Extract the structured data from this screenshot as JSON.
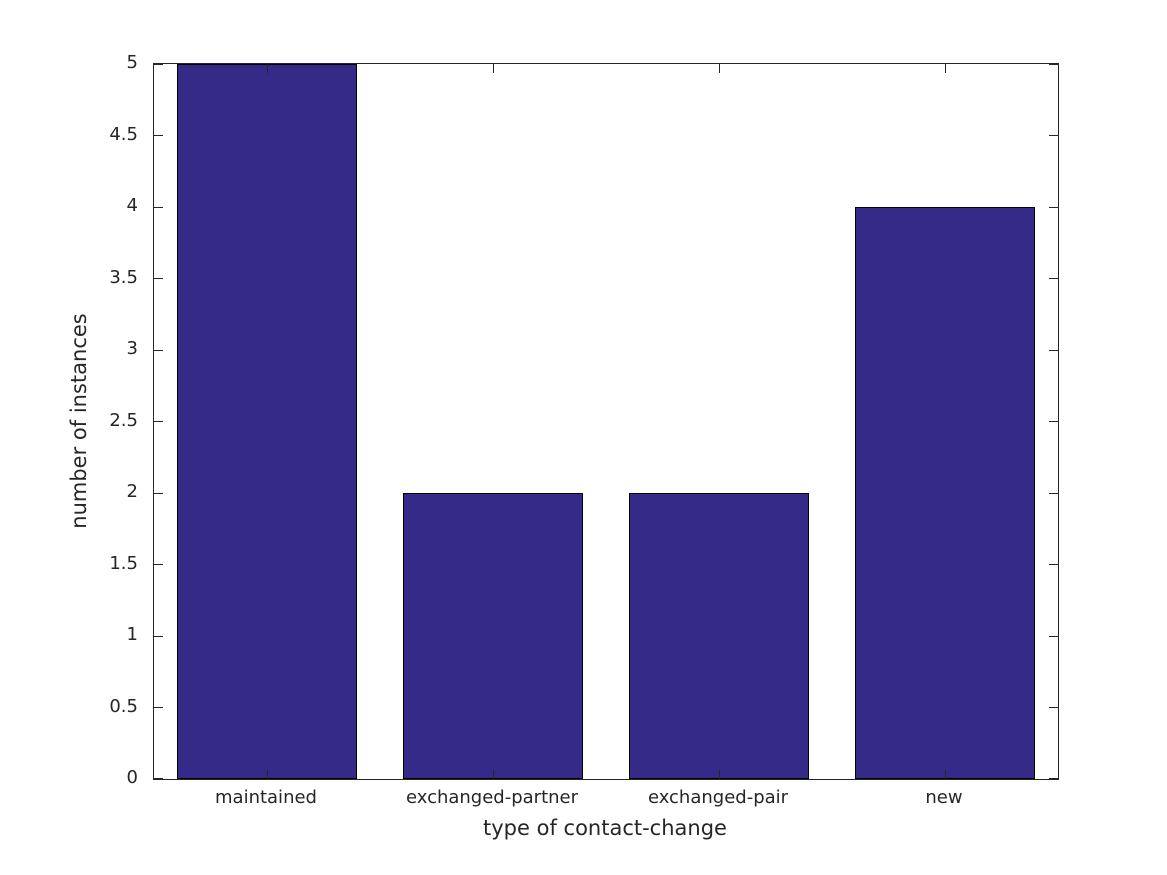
{
  "figure": {
    "background": "#ffffff"
  },
  "chart_data": {
    "type": "bar",
    "title": "",
    "xlabel": "type of contact-change",
    "ylabel": "number of instances",
    "categories": [
      "maintained",
      "exchanged-partner",
      "exchanged-pair",
      "new"
    ],
    "values": [
      5,
      2,
      2,
      4
    ],
    "ylim": [
      0,
      5
    ],
    "ytick_step": 0.5,
    "ytick_labels": [
      "0",
      "0.5",
      "1",
      "1.5",
      "2",
      "2.5",
      "3",
      "3.5",
      "4",
      "4.5",
      "5"
    ],
    "bar_width_fraction": 0.8,
    "bar_color": "#352A87",
    "bar_edge_color": "#000000",
    "axis_color": "#262626",
    "text_color": "#262626",
    "grid": false,
    "legend_position": "none"
  }
}
